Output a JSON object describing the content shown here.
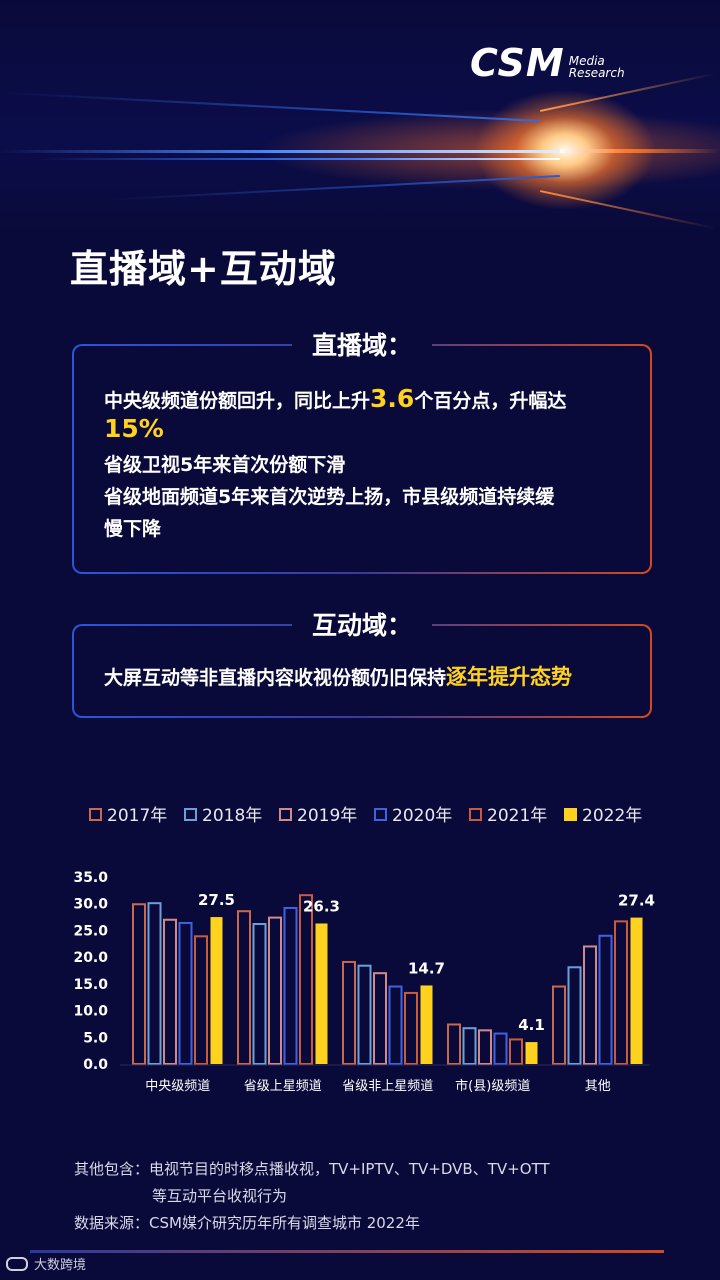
{
  "logo": {
    "main": "CSM",
    "sub1": "Media",
    "sub2": "Research"
  },
  "page_title": "直播域+互动域",
  "live": {
    "title": "直播域：",
    "line1_a": "中央级频道份额回升，同比上升",
    "line1_num": "3.6",
    "line1_b": "个百分点，升幅达",
    "line1_c": "15%",
    "line2": "省级卫视5年来首次份额下滑",
    "line3": "省级地面频道5年来首次逆势上扬，市县级频道持续缓",
    "line4": "慢下降"
  },
  "interactive": {
    "title": "互动域：",
    "text_a": "大屏互动等非直播内容收视份额仍旧保持",
    "text_b": "逐年提升态势"
  },
  "colors": {
    "2017": "#c8684e",
    "2018": "#6aa2d8",
    "2019": "#d08a8a",
    "2020": "#3e62e0",
    "2021": "#c85a3e",
    "2022": "#ffd21f"
  },
  "chart_data": {
    "type": "bar",
    "categories": [
      "中央级频道",
      "省级上星频道",
      "省级非上星频道",
      "市(县)级频道",
      "其他"
    ],
    "series": [
      {
        "name": "2017年",
        "values": [
          29.9,
          28.6,
          19.1,
          7.4,
          14.5
        ],
        "style": "outline"
      },
      {
        "name": "2018年",
        "values": [
          30.1,
          26.2,
          18.4,
          6.7,
          18.1
        ],
        "style": "outline"
      },
      {
        "name": "2019年",
        "values": [
          27.0,
          27.4,
          17.0,
          6.3,
          22.0
        ],
        "style": "outline"
      },
      {
        "name": "2020年",
        "values": [
          26.4,
          29.2,
          14.5,
          5.7,
          24.0
        ],
        "style": "outline"
      },
      {
        "name": "2021年",
        "values": [
          23.9,
          31.6,
          13.3,
          4.6,
          26.7
        ],
        "style": "outline"
      },
      {
        "name": "2022年",
        "values": [
          27.5,
          26.3,
          14.7,
          4.1,
          27.4
        ],
        "style": "filled"
      }
    ],
    "data_labels": [
      "27.5",
      "26.3",
      "14.7",
      "4.1",
      "27.4"
    ],
    "y_ticks": [
      "35.0",
      "30.0",
      "25.0",
      "20.0",
      "15.0",
      "10.0",
      "5.0",
      "0.0"
    ],
    "ylim": [
      0,
      35
    ],
    "legend_position": "top",
    "grid": false
  },
  "notes": {
    "line1": "其他包含：电视节目的时移点播收视，TV+IPTV、TV+DVB、TV+OTT",
    "line2": "等互动平台收视行为",
    "line3": "数据来源：CSM媒介研究历年所有调查城市 2022年"
  },
  "brand": "大数跨境"
}
